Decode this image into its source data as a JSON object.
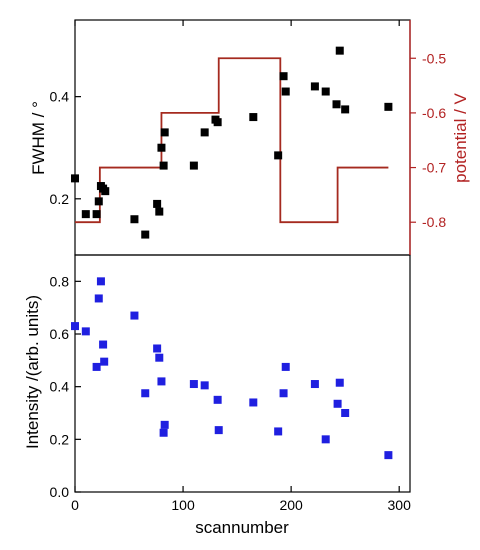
{
  "chart_data": [
    {
      "type": "scatter",
      "panel": "top",
      "xlim": [
        0,
        310
      ],
      "ylim": [
        0.09,
        0.55
      ],
      "ylabel": "FWHM / °",
      "yticks": [
        0.2,
        0.4
      ],
      "y2label": "potential / V",
      "y2lim": [
        -0.86,
        -0.43
      ],
      "y2ticks": [
        -0.5,
        -0.6,
        -0.7,
        -0.8
      ],
      "y2tick_labels": [
        "-0.5",
        "-0.6",
        "-0.7",
        "-0.8"
      ],
      "series": [
        {
          "type": "scatter",
          "color": "#000000",
          "x": [
            0,
            10,
            20,
            22,
            24,
            26,
            28,
            55,
            65,
            76,
            78,
            80,
            82,
            83,
            110,
            120,
            130,
            132,
            165,
            188,
            193,
            195,
            222,
            232,
            242,
            245,
            250,
            290
          ],
          "y": [
            0.24,
            0.17,
            0.17,
            0.195,
            0.225,
            0.22,
            0.215,
            0.16,
            0.13,
            0.19,
            0.175,
            0.3,
            0.265,
            0.33,
            0.265,
            0.33,
            0.355,
            0.35,
            0.36,
            0.285,
            0.44,
            0.41,
            0.42,
            0.41,
            0.385,
            0.49,
            0.375,
            0.38
          ]
        },
        {
          "type": "line",
          "axis": "y2",
          "color": "#a52a1f",
          "x": [
            0,
            23,
            23,
            28,
            28,
            80,
            80,
            82,
            82,
            133,
            133,
            190,
            190,
            243,
            243,
            250,
            250,
            290
          ],
          "y": [
            -0.8,
            -0.8,
            -0.7,
            -0.7,
            -0.7,
            -0.7,
            -0.6,
            -0.6,
            -0.6,
            -0.6,
            -0.5,
            -0.5,
            -0.8,
            -0.8,
            -0.7,
            -0.7,
            -0.7,
            -0.7
          ]
        }
      ]
    },
    {
      "type": "scatter",
      "panel": "bottom",
      "xlim": [
        0,
        310
      ],
      "ylim": [
        0,
        0.9
      ],
      "xlabel": "scannumber",
      "ylabel": "Intensity /(arb. units)",
      "xticks": [
        0,
        100,
        200,
        300
      ],
      "yticks": [
        0.0,
        0.2,
        0.4,
        0.6,
        0.8
      ],
      "ytick_labels": [
        "0.0",
        "0.2",
        "0.4",
        "0.6",
        "0.8"
      ],
      "series": [
        {
          "type": "scatter",
          "color": "#1f1fe0",
          "x": [
            0,
            10,
            20,
            22,
            24,
            26,
            27,
            55,
            65,
            76,
            78,
            80,
            82,
            83,
            110,
            120,
            132,
            133,
            165,
            188,
            193,
            195,
            222,
            232,
            243,
            245,
            250,
            290
          ],
          "y": [
            0.63,
            0.61,
            0.475,
            0.735,
            0.8,
            0.56,
            0.495,
            0.67,
            0.375,
            0.545,
            0.51,
            0.42,
            0.225,
            0.255,
            0.41,
            0.405,
            0.35,
            0.235,
            0.34,
            0.23,
            0.375,
            0.475,
            0.41,
            0.2,
            0.335,
            0.415,
            0.3,
            0.14
          ]
        }
      ]
    }
  ]
}
